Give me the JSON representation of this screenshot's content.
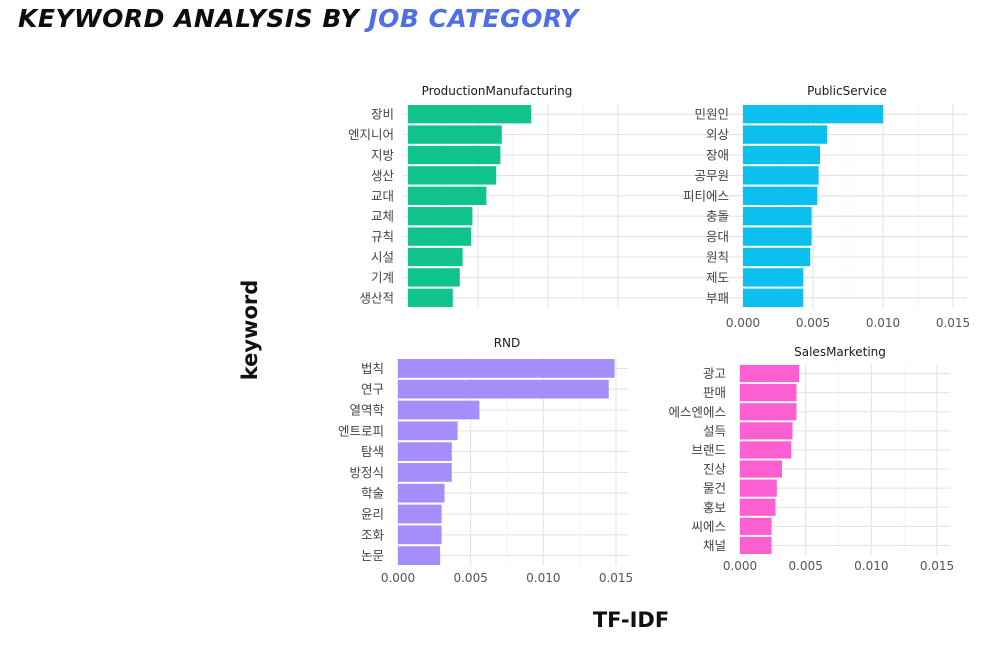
{
  "title": {
    "prefix": "KEYWORD ANALYSIS BY ",
    "accent": "JOB CATEGORY",
    "accent_color": "#4f6fe6"
  },
  "y_axis_title": "keyword",
  "x_axis_title": "TF-IDF",
  "chart_data": [
    {
      "type": "bar",
      "orientation": "horizontal",
      "title": "ProductionManufacturing",
      "categories": [
        "장비",
        "엔지니어",
        "지방",
        "생산",
        "교대",
        "교체",
        "규칙",
        "시설",
        "기계",
        "생산적"
      ],
      "values": [
        0.0088,
        0.0067,
        0.0066,
        0.0063,
        0.0056,
        0.0046,
        0.0045,
        0.0039,
        0.0037,
        0.0032
      ],
      "color": "#10c38c",
      "xlim": [
        0,
        0.0155
      ],
      "ticks": [],
      "show_x_ticks": false,
      "grid": true
    },
    {
      "type": "bar",
      "orientation": "horizontal",
      "title": "PublicService",
      "categories": [
        "민원인",
        "외상",
        "장애",
        "공무원",
        "피티에스",
        "충돌",
        "응대",
        "원칙",
        "제도",
        "부패"
      ],
      "values": [
        0.01,
        0.006,
        0.0055,
        0.0054,
        0.0053,
        0.0049,
        0.0049,
        0.0048,
        0.0043,
        0.0043
      ],
      "color": "#0bbfee",
      "xlim": [
        0,
        0.0155
      ],
      "ticks": [
        "0.000",
        "0.005",
        "0.010",
        "0.015"
      ],
      "show_x_ticks": true,
      "grid": true
    },
    {
      "type": "bar",
      "orientation": "horizontal",
      "title": "RND",
      "categories": [
        "법칙",
        "연구",
        "열역학",
        "엔트로피",
        "탐색",
        "방정식",
        "학술",
        "윤리",
        "조화",
        "논문"
      ],
      "values": [
        0.0149,
        0.0145,
        0.0056,
        0.0041,
        0.0037,
        0.0037,
        0.0032,
        0.003,
        0.003,
        0.0029
      ],
      "color": "#a58dfa",
      "xlim": [
        0,
        0.0155
      ],
      "ticks": [
        "0.000",
        "0.005",
        "0.010",
        "0.015"
      ],
      "show_x_ticks": true,
      "grid": true
    },
    {
      "type": "bar",
      "orientation": "horizontal",
      "title": "SalesMarketing",
      "categories": [
        "광고",
        "판매",
        "에스엔에스",
        "설득",
        "브랜드",
        "진상",
        "물건",
        "홍보",
        "씨에스",
        "채널"
      ],
      "values": [
        0.0045,
        0.0043,
        0.0043,
        0.004,
        0.0039,
        0.0032,
        0.0028,
        0.0027,
        0.0024,
        0.0024
      ],
      "color": "#fb5fd2",
      "xlim": [
        0,
        0.0155
      ],
      "ticks": [
        "0.000",
        "0.005",
        "0.010",
        "0.015"
      ],
      "show_x_ticks": true,
      "grid": true
    }
  ]
}
